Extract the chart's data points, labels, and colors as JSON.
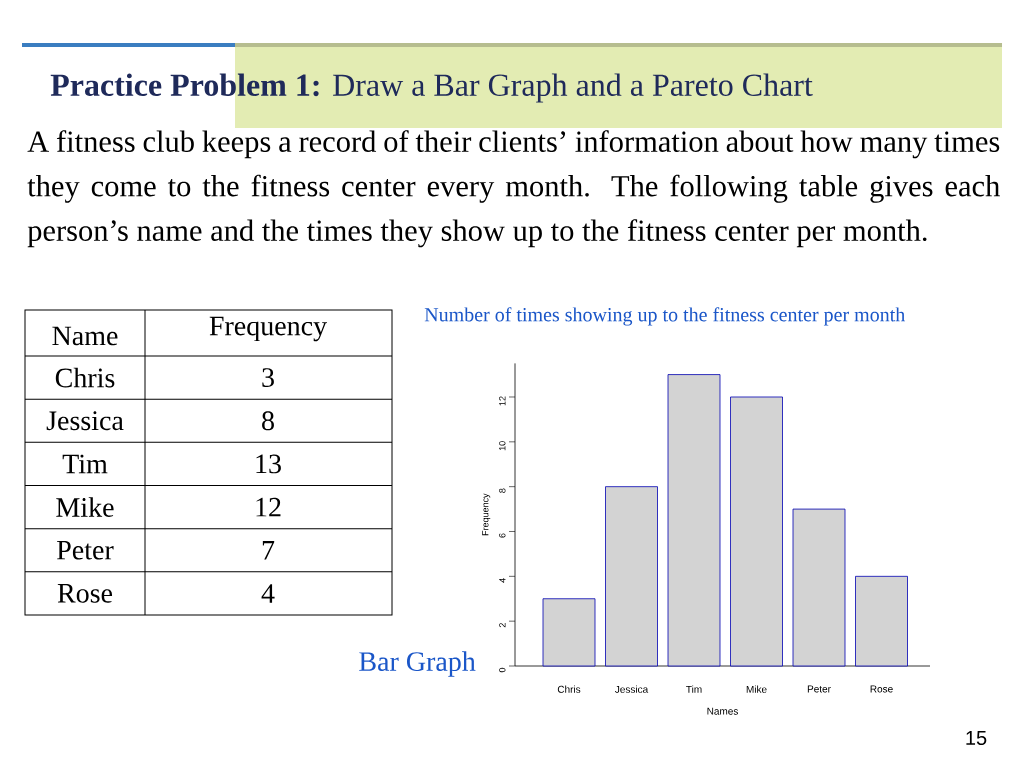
{
  "chart_data": {
    "type": "bar",
    "title": "**Practice Problem 1:** Draw a Bar Graph and a Pareto Chart",
    "xlabel": "Names",
    "ylabel": "Frequency",
    "categories": [
      "Chris",
      "Jessica",
      "Tim",
      "Mike",
      "Peter",
      "Rose"
    ],
    "values": [
      3,
      8,
      13,
      12,
      7,
      4
    ],
    "color": "#d3d3d3",
    "ylim": [
      0,
      13.5
    ],
    "yticks": [
      0,
      2,
      4,
      6,
      8,
      10,
      12
    ],
    "annotations": [
      "A fitness club keeps a record of their clients’ information about how many times they come to the fitness center every month. The following table gives each person’s name and the times they show up to the fitness center per month.",
      "Name",
      "Frequency",
      "Number of times showing up to the fitness center per month",
      "Bar Graph",
      "15",
      "3",
      "8",
      "13",
      "12",
      "7",
      "4"
    ]
  }
}
